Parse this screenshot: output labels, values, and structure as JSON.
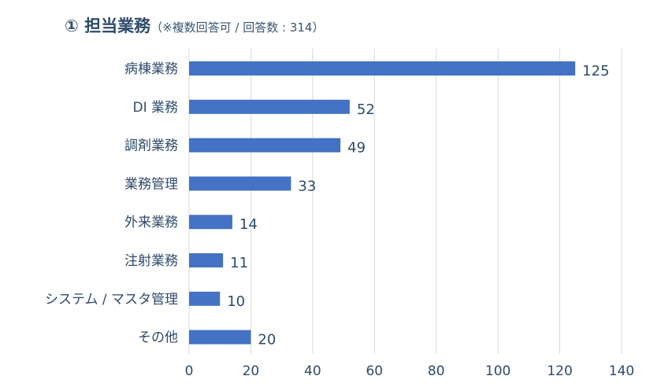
{
  "title": {
    "main": "① 担当業務",
    "sub": "（※複数回答可 / 回答数 : 314）"
  },
  "colors": {
    "bar": "#4472c4",
    "grid": "#d9d9d9",
    "text": "#2f4b6b"
  },
  "chart_data": {
    "type": "bar",
    "orientation": "horizontal",
    "categories": [
      "病棟業務",
      "DI 業務",
      "調剤業務",
      "業務管理",
      "外来業務",
      "注射業務",
      "システム / マスタ管理",
      "その他"
    ],
    "values": [
      125,
      52,
      49,
      33,
      14,
      11,
      10,
      20
    ],
    "xlim": [
      0,
      140
    ],
    "xticks": [
      0,
      20,
      40,
      60,
      80,
      100,
      120,
      140
    ],
    "grid": true,
    "data_labels": true
  }
}
